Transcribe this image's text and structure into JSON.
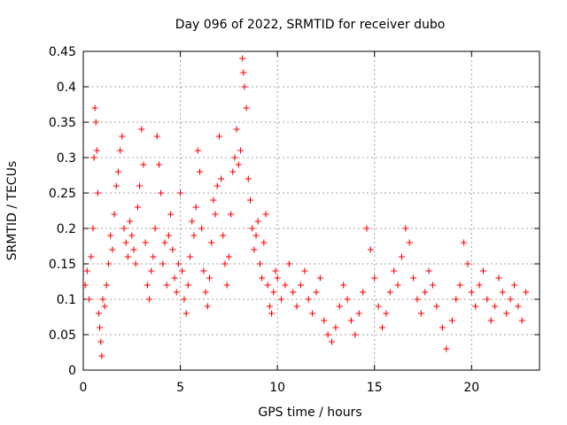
{
  "chart_data": {
    "type": "scatter",
    "title": "Day 096 of 2022, SRMTID for receiver dubo",
    "xlabel": "GPS time / hours",
    "ylabel": "SRMTID / TECUs",
    "xlim": [
      0,
      23.5
    ],
    "ylim": [
      0,
      0.45
    ],
    "xticks": [
      0,
      5,
      10,
      15,
      20
    ],
    "yticks": [
      0,
      0.05,
      0.1,
      0.15,
      0.2,
      0.25,
      0.3,
      0.35,
      0.4,
      0.45
    ],
    "xtick_labels": [
      "0",
      "5",
      "10",
      "15",
      "20"
    ],
    "ytick_labels": [
      "0",
      "0.05",
      "0.1",
      "0.15",
      "0.2",
      "0.25",
      "0.3",
      "0.35",
      "0.4",
      "0.45"
    ],
    "grid": true,
    "marker": "+",
    "color": "#ff0000",
    "series": [
      {
        "name": "SRMTID",
        "points": [
          [
            0.1,
            0.12
          ],
          [
            0.2,
            0.14
          ],
          [
            0.3,
            0.1
          ],
          [
            0.4,
            0.16
          ],
          [
            0.5,
            0.2
          ],
          [
            0.55,
            0.3
          ],
          [
            0.6,
            0.37
          ],
          [
            0.65,
            0.35
          ],
          [
            0.7,
            0.31
          ],
          [
            0.75,
            0.25
          ],
          [
            0.8,
            0.08
          ],
          [
            0.85,
            0.06
          ],
          [
            0.9,
            0.04
          ],
          [
            0.95,
            0.02
          ],
          [
            1.0,
            0.1
          ],
          [
            1.1,
            0.09
          ],
          [
            1.2,
            0.12
          ],
          [
            1.3,
            0.15
          ],
          [
            1.4,
            0.19
          ],
          [
            1.5,
            0.17
          ],
          [
            1.6,
            0.22
          ],
          [
            1.7,
            0.26
          ],
          [
            1.8,
            0.28
          ],
          [
            1.9,
            0.31
          ],
          [
            2.0,
            0.33
          ],
          [
            2.1,
            0.2
          ],
          [
            2.2,
            0.18
          ],
          [
            2.3,
            0.16
          ],
          [
            2.4,
            0.21
          ],
          [
            2.5,
            0.19
          ],
          [
            2.6,
            0.17
          ],
          [
            2.7,
            0.15
          ],
          [
            2.8,
            0.23
          ],
          [
            2.9,
            0.26
          ],
          [
            3.0,
            0.34
          ],
          [
            3.1,
            0.29
          ],
          [
            3.2,
            0.18
          ],
          [
            3.3,
            0.12
          ],
          [
            3.4,
            0.1
          ],
          [
            3.5,
            0.14
          ],
          [
            3.6,
            0.16
          ],
          [
            3.7,
            0.2
          ],
          [
            3.8,
            0.33
          ],
          [
            3.9,
            0.29
          ],
          [
            4.0,
            0.25
          ],
          [
            4.1,
            0.15
          ],
          [
            4.2,
            0.18
          ],
          [
            4.3,
            0.12
          ],
          [
            4.4,
            0.19
          ],
          [
            4.5,
            0.22
          ],
          [
            4.6,
            0.17
          ],
          [
            4.7,
            0.13
          ],
          [
            4.8,
            0.11
          ],
          [
            4.9,
            0.15
          ],
          [
            5.0,
            0.25
          ],
          [
            5.1,
            0.14
          ],
          [
            5.2,
            0.1
          ],
          [
            5.3,
            0.08
          ],
          [
            5.4,
            0.12
          ],
          [
            5.5,
            0.16
          ],
          [
            5.6,
            0.21
          ],
          [
            5.7,
            0.19
          ],
          [
            5.8,
            0.23
          ],
          [
            5.9,
            0.31
          ],
          [
            6.0,
            0.28
          ],
          [
            6.1,
            0.2
          ],
          [
            6.2,
            0.14
          ],
          [
            6.3,
            0.11
          ],
          [
            6.4,
            0.09
          ],
          [
            6.5,
            0.13
          ],
          [
            6.6,
            0.18
          ],
          [
            6.7,
            0.24
          ],
          [
            6.8,
            0.22
          ],
          [
            6.9,
            0.26
          ],
          [
            7.0,
            0.33
          ],
          [
            7.1,
            0.27
          ],
          [
            7.2,
            0.19
          ],
          [
            7.3,
            0.15
          ],
          [
            7.4,
            0.12
          ],
          [
            7.5,
            0.16
          ],
          [
            7.6,
            0.22
          ],
          [
            7.7,
            0.28
          ],
          [
            7.8,
            0.3
          ],
          [
            7.9,
            0.34
          ],
          [
            8.0,
            0.29
          ],
          [
            8.1,
            0.31
          ],
          [
            8.2,
            0.44
          ],
          [
            8.25,
            0.42
          ],
          [
            8.3,
            0.4
          ],
          [
            8.4,
            0.37
          ],
          [
            8.5,
            0.27
          ],
          [
            8.6,
            0.24
          ],
          [
            8.7,
            0.2
          ],
          [
            8.8,
            0.17
          ],
          [
            8.9,
            0.19
          ],
          [
            9.0,
            0.21
          ],
          [
            9.1,
            0.15
          ],
          [
            9.2,
            0.13
          ],
          [
            9.3,
            0.18
          ],
          [
            9.4,
            0.22
          ],
          [
            9.5,
            0.12
          ],
          [
            9.6,
            0.09
          ],
          [
            9.7,
            0.08
          ],
          [
            9.8,
            0.11
          ],
          [
            9.9,
            0.14
          ],
          [
            10.0,
            0.13
          ],
          [
            10.2,
            0.1
          ],
          [
            10.4,
            0.12
          ],
          [
            10.6,
            0.15
          ],
          [
            10.8,
            0.11
          ],
          [
            11.0,
            0.09
          ],
          [
            11.2,
            0.12
          ],
          [
            11.4,
            0.14
          ],
          [
            11.6,
            0.1
          ],
          [
            11.8,
            0.08
          ],
          [
            12.0,
            0.11
          ],
          [
            12.2,
            0.13
          ],
          [
            12.4,
            0.07
          ],
          [
            12.6,
            0.05
          ],
          [
            12.8,
            0.04
          ],
          [
            13.0,
            0.06
          ],
          [
            13.2,
            0.09
          ],
          [
            13.4,
            0.12
          ],
          [
            13.6,
            0.1
          ],
          [
            13.8,
            0.07
          ],
          [
            14.0,
            0.05
          ],
          [
            14.2,
            0.08
          ],
          [
            14.4,
            0.11
          ],
          [
            14.6,
            0.2
          ],
          [
            14.8,
            0.17
          ],
          [
            15.0,
            0.13
          ],
          [
            15.2,
            0.09
          ],
          [
            15.4,
            0.06
          ],
          [
            15.6,
            0.08
          ],
          [
            15.8,
            0.11
          ],
          [
            16.0,
            0.14
          ],
          [
            16.2,
            0.12
          ],
          [
            16.4,
            0.16
          ],
          [
            16.6,
            0.2
          ],
          [
            16.8,
            0.18
          ],
          [
            17.0,
            0.13
          ],
          [
            17.2,
            0.1
          ],
          [
            17.4,
            0.08
          ],
          [
            17.6,
            0.11
          ],
          [
            17.8,
            0.14
          ],
          [
            18.0,
            0.12
          ],
          [
            18.2,
            0.09
          ],
          [
            18.5,
            0.06
          ],
          [
            18.7,
            0.03
          ],
          [
            19.0,
            0.07
          ],
          [
            19.2,
            0.1
          ],
          [
            19.4,
            0.12
          ],
          [
            19.6,
            0.18
          ],
          [
            19.8,
            0.15
          ],
          [
            20.0,
            0.11
          ],
          [
            20.2,
            0.09
          ],
          [
            20.4,
            0.12
          ],
          [
            20.6,
            0.14
          ],
          [
            20.8,
            0.1
          ],
          [
            21.0,
            0.07
          ],
          [
            21.2,
            0.09
          ],
          [
            21.4,
            0.13
          ],
          [
            21.6,
            0.11
          ],
          [
            21.8,
            0.08
          ],
          [
            22.0,
            0.1
          ],
          [
            22.2,
            0.12
          ],
          [
            22.4,
            0.09
          ],
          [
            22.6,
            0.07
          ],
          [
            22.8,
            0.11
          ]
        ]
      }
    ]
  }
}
